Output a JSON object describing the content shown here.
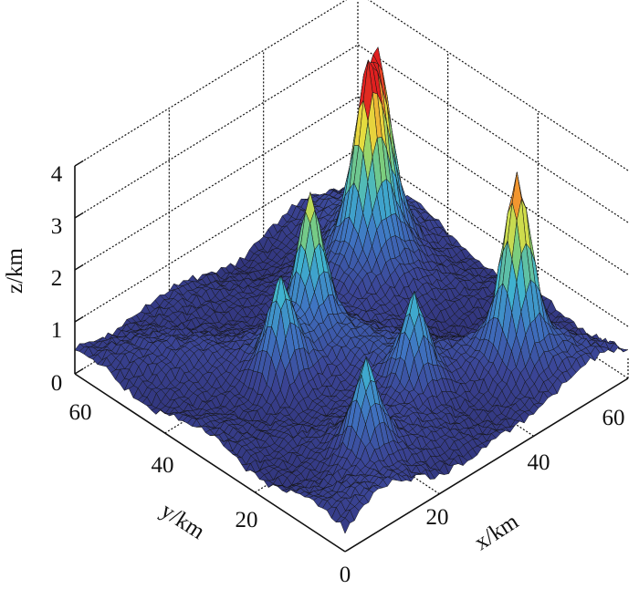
{
  "chart_data": {
    "type": "surface3d",
    "xlabel": "x/km",
    "ylabel": "y/km",
    "zlabel": "z/km",
    "xlim": [
      0,
      60
    ],
    "ylim": [
      0,
      60
    ],
    "zlim": [
      0,
      4
    ],
    "x_ticks": [
      "0",
      "20",
      "40",
      "60"
    ],
    "y_ticks": [
      "20",
      "40",
      "60"
    ],
    "z_ticks": [
      "0",
      "1",
      "2",
      "3",
      "4"
    ],
    "grid": true,
    "colormap": [
      "#2e2f72",
      "#3b4596",
      "#3f74c2",
      "#3fb2cf",
      "#7fcf7a",
      "#e4e040",
      "#f4a030",
      "#e02020"
    ],
    "background_level_km": 0.4,
    "peaks": [
      {
        "x": 14,
        "y": 10,
        "z": 2.3
      },
      {
        "x": 30,
        "y": 16,
        "z": 2.3
      },
      {
        "x": 46,
        "y": 10,
        "z": 4.0
      },
      {
        "x": 17,
        "y": 32,
        "z": 2.5
      },
      {
        "x": 27,
        "y": 36,
        "z": 3.2
      },
      {
        "x": 45,
        "y": 42,
        "z": 3.7
      },
      {
        "x": 49,
        "y": 44,
        "z": 3.6
      }
    ]
  }
}
